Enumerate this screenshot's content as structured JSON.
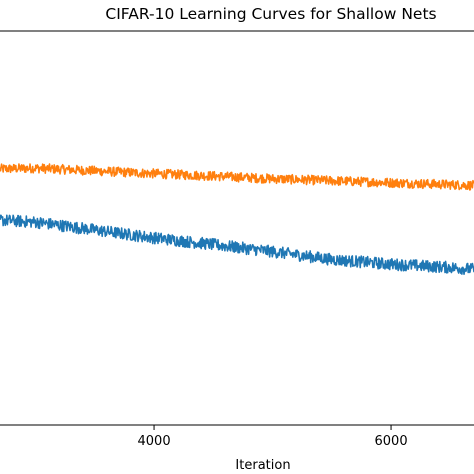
{
  "chart_data": {
    "type": "line",
    "title": "CIFAR-10 Learning Curves for Shallow Nets",
    "xlabel": "Iteration",
    "ylabel": "",
    "xlim": [
      2700,
      6700
    ],
    "ylim": [
      0,
      1
    ],
    "x_ticks": [
      4000,
      6000
    ],
    "x_tick_labels": [
      "4000",
      "6000"
    ],
    "grid": false,
    "legend": "none visible",
    "series": [
      {
        "color": "#ff7f0e",
        "noise": 0.012,
        "points": [
          [
            2700,
            0.65
          ],
          [
            3000,
            0.652
          ],
          [
            3500,
            0.645
          ],
          [
            4000,
            0.638
          ],
          [
            4500,
            0.632
          ],
          [
            5000,
            0.625
          ],
          [
            5500,
            0.62
          ],
          [
            6000,
            0.615
          ],
          [
            6500,
            0.61
          ],
          [
            6700,
            0.608
          ]
        ]
      },
      {
        "color": "#1f77b4",
        "noise": 0.015,
        "points": [
          [
            2700,
            0.52
          ],
          [
            3000,
            0.515
          ],
          [
            3500,
            0.495
          ],
          [
            4000,
            0.475
          ],
          [
            4500,
            0.458
          ],
          [
            5000,
            0.44
          ],
          [
            5500,
            0.42
          ],
          [
            6000,
            0.408
          ],
          [
            6500,
            0.4
          ],
          [
            6700,
            0.395
          ]
        ]
      }
    ]
  }
}
